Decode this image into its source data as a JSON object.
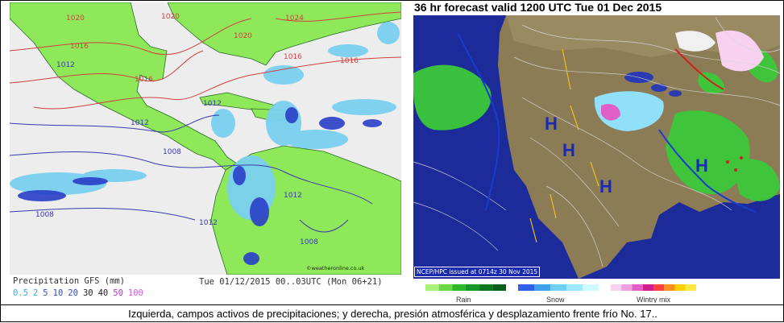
{
  "left_map": {
    "legend_title": "Precipitation GFS (mm)",
    "scale_values": [
      "0.5",
      "2",
      "5",
      "10",
      "20",
      "30",
      "40",
      "50",
      "100"
    ],
    "scale_colors": [
      "#33b0e8",
      "#33b0e8",
      "#2a4bd0",
      "#2a4bd0",
      "#2a4bd0",
      "#222222",
      "#222222",
      "#c02ad0",
      "#d060e0"
    ],
    "valid_time": "Tue 01/12/2015 00..03UTC  (Mon 06+21)",
    "credit": "©weatheronline.co.uk",
    "isobars": [
      {
        "label": "1020",
        "color": "#d04040"
      },
      {
        "label": "1020",
        "color": "#d04040"
      },
      {
        "label": "1024",
        "color": "#d04040"
      },
      {
        "label": "1020",
        "color": "#d04040"
      },
      {
        "label": "1016",
        "color": "#d04040"
      },
      {
        "label": "1016",
        "color": "#d04040"
      },
      {
        "label": "1012",
        "color": "#3a3ab0"
      },
      {
        "label": "1012",
        "color": "#3a3ab0"
      },
      {
        "label": "1012",
        "color": "#3a3ab0"
      },
      {
        "label": "1008",
        "color": "#3a3ab0"
      },
      {
        "label": "1008",
        "color": "#3a3ab0"
      },
      {
        "label": "1012",
        "color": "#3a3ab0"
      },
      {
        "label": "1008",
        "color": "#3a3ab0"
      },
      {
        "label": "1012",
        "color": "#3a3ab0"
      },
      {
        "label": "1016",
        "color": "#d04040"
      },
      {
        "label": "1016",
        "color": "#d04040"
      }
    ],
    "colors": {
      "ocean": "#ededed",
      "land": "#8fe85a",
      "rain_light": "#7ad0f0",
      "rain_heavy": "#2a3fc8"
    }
  },
  "right_map": {
    "title": "36 hr forecast valid 1200 UTC Tue 01 Dec 2015",
    "issued": "NCEP/HPC issued at 0714z  30 Nov 2015",
    "highs": [
      "H",
      "H",
      "H",
      "H"
    ],
    "legend": [
      {
        "label": "Rain",
        "colors": [
          "#a8f07a",
          "#6ad845",
          "#2fb82a",
          "#14962a",
          "#0a7a20",
          "#06601a"
        ]
      },
      {
        "label": "Snow",
        "colors": [
          "#3060e8",
          "#40a0f0",
          "#70d0f8",
          "#a0e8ff",
          "#d0f8ff"
        ]
      },
      {
        "label": "Wintry mix",
        "colors": [
          "#f8d0f0",
          "#f0a0e0",
          "#e060c8",
          "#d02090",
          "#ff4040",
          "#ff9020",
          "#ffd000",
          "#ffe840"
        ]
      }
    ],
    "colors": {
      "ocean": "#1c2a9a",
      "land": "#8c7c55",
      "lake": "#2a3ab0"
    }
  },
  "caption": "Izquierda, campos activos de precipitaciones; y derecha, presión atmosférica y desplazamiento frente frío No. 17.."
}
